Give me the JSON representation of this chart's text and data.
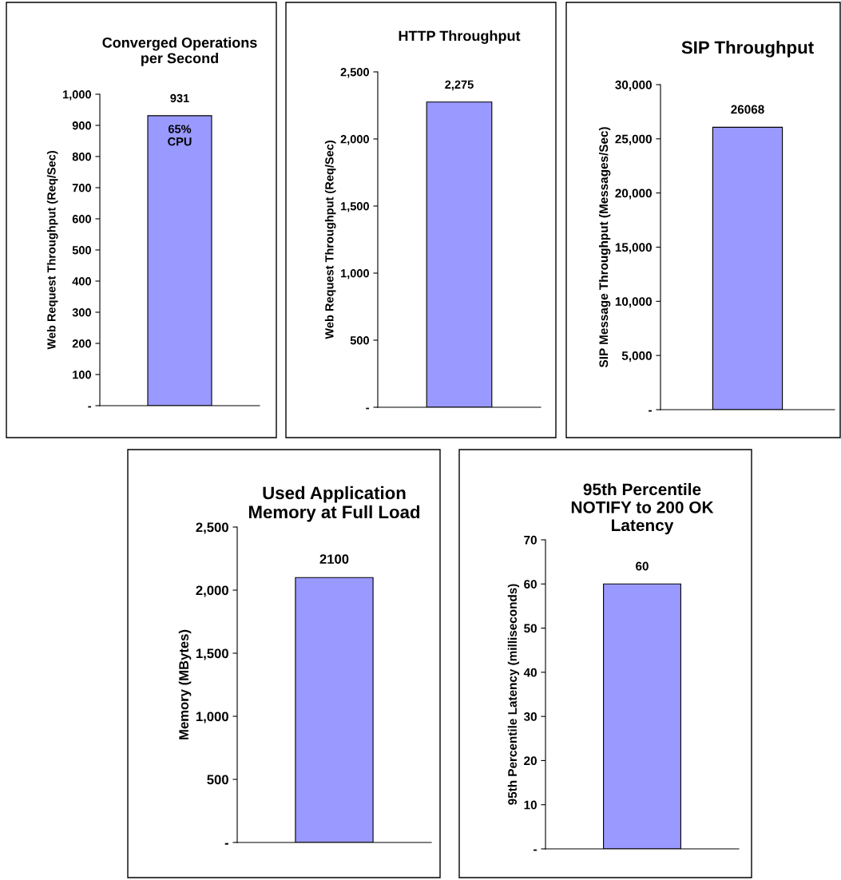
{
  "chart_data": [
    {
      "type": "bar",
      "title": "Converged Operations\nper Second",
      "ylabel": "Web Request Throughput (Req/Sec)",
      "categories": [
        null
      ],
      "values": [
        931
      ],
      "color": "#9999ff",
      "value_labels": [
        "931"
      ],
      "annotations": [
        "65%\nCPU"
      ],
      "ylim": [
        0,
        1000
      ],
      "yticks": [
        {
          "value": 0,
          "label": "-"
        },
        100,
        200,
        300,
        400,
        500,
        600,
        700,
        800,
        900,
        {
          "value": 1000,
          "label": "1,000"
        }
      ],
      "grid": false,
      "legend": false
    },
    {
      "type": "bar",
      "title": "HTTP Throughput",
      "ylabel": "Web Request Throughput (Req/Sec)",
      "categories": [
        null
      ],
      "values": [
        2275
      ],
      "color": "#9999ff",
      "value_labels": [
        "2,275"
      ],
      "ylim": [
        0,
        2500
      ],
      "yticks": [
        {
          "value": 0,
          "label": "-"
        },
        500,
        {
          "value": 1000,
          "label": "1,000"
        },
        {
          "value": 1500,
          "label": "1,500"
        },
        {
          "value": 2000,
          "label": "2,000"
        },
        {
          "value": 2500,
          "label": "2,500"
        }
      ],
      "grid": false,
      "legend": false
    },
    {
      "type": "bar",
      "title": "SIP Throughput",
      "ylabel": "SIP Message Throughput (Messages/Sec)",
      "categories": [
        null
      ],
      "values": [
        26068
      ],
      "color": "#9999ff",
      "data_labels": true,
      "ylim": [
        0,
        30000
      ],
      "yticks": [
        {
          "value": 0,
          "label": "-"
        },
        {
          "value": 5000,
          "label": "5,000"
        },
        {
          "value": 10000,
          "label": "10,000"
        },
        {
          "value": 15000,
          "label": "15,000"
        },
        {
          "value": 20000,
          "label": "20,000"
        },
        {
          "value": 25000,
          "label": "25,000"
        },
        {
          "value": 30000,
          "label": "30,000"
        }
      ],
      "grid": false,
      "legend": false
    },
    {
      "type": "bar",
      "title": "Used Application\nMemory at Full Load",
      "ylabel": "Memory (MBytes)",
      "categories": [
        null
      ],
      "values": [
        2100
      ],
      "color": "#9999ff",
      "data_labels": true,
      "ylim": [
        0,
        2500
      ],
      "yticks": [
        {
          "value": 0,
          "label": "-"
        },
        500,
        {
          "value": 1000,
          "label": "1,000"
        },
        {
          "value": 1500,
          "label": "1,500"
        },
        {
          "value": 2000,
          "label": "2,000"
        },
        {
          "value": 2500,
          "label": "2,500"
        }
      ],
      "grid": false,
      "legend": false
    },
    {
      "type": "bar",
      "title": "95th Percentile\nNOTIFY to 200 OK\nLatency",
      "ylabel": "95th Percentile Latency (milliseconds)",
      "categories": [
        null
      ],
      "values": [
        60
      ],
      "color": "#9999ff",
      "data_labels": true,
      "ylim": [
        0,
        70
      ],
      "yticks": [
        {
          "value": 0,
          "label": "-"
        },
        10,
        20,
        30,
        40,
        50,
        60,
        70
      ],
      "grid": false,
      "legend": false
    }
  ]
}
